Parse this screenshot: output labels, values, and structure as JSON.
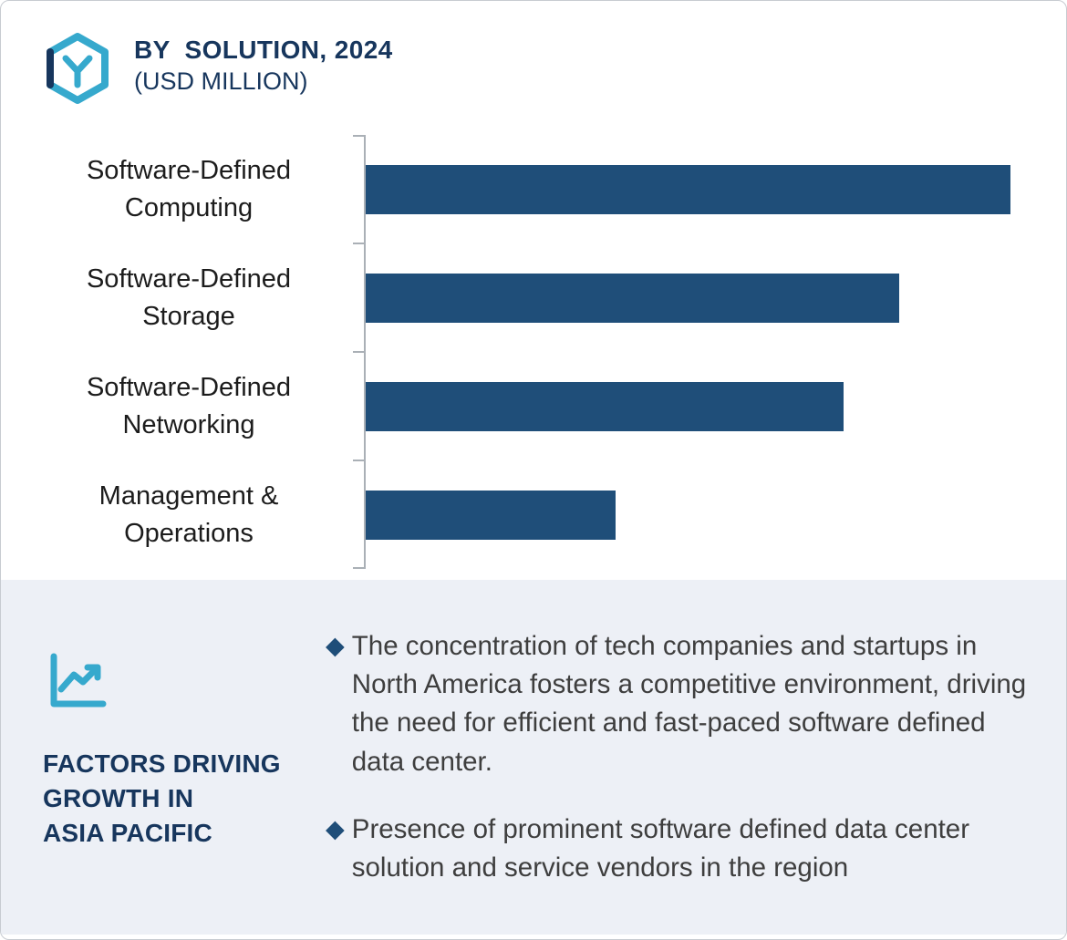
{
  "header": {
    "title": "BY  SOLUTION, 2024",
    "subtitle": "(USD MILLION)"
  },
  "chart_data": {
    "type": "bar",
    "orientation": "horizontal",
    "title": "BY SOLUTION, 2024 (USD MILLION)",
    "categories": [
      "Software-Defined\nComputing",
      "Software-Defined\nStorage",
      "Software-Defined\nNetworking",
      "Management &\nOperations"
    ],
    "values": [
      93,
      77,
      69,
      36
    ],
    "values_note": "estimated relative bar lengths; no numeric data labels are shown in the figure",
    "xlabel": "",
    "ylabel": "",
    "xlim": [
      0,
      100
    ],
    "grid": false,
    "legend": false,
    "bar_color": "#1f4e79",
    "axis_color": "#aab0b6"
  },
  "factors": {
    "heading": "FACTORS DRIVING\nGROWTH IN\nASIA PACIFIC",
    "bullet_char": "◆",
    "bullets": [
      "The concentration of tech companies and startups in North America fosters a competitive environment, driving the need for efficient and fast-paced software defined data center.",
      "Presence of prominent software defined data center solution and service vendors in the region"
    ]
  },
  "colors": {
    "navy": "#17365d",
    "bar_navy": "#1f4e79",
    "teal": "#36a9cd",
    "panel_bg": "#edf0f6"
  }
}
